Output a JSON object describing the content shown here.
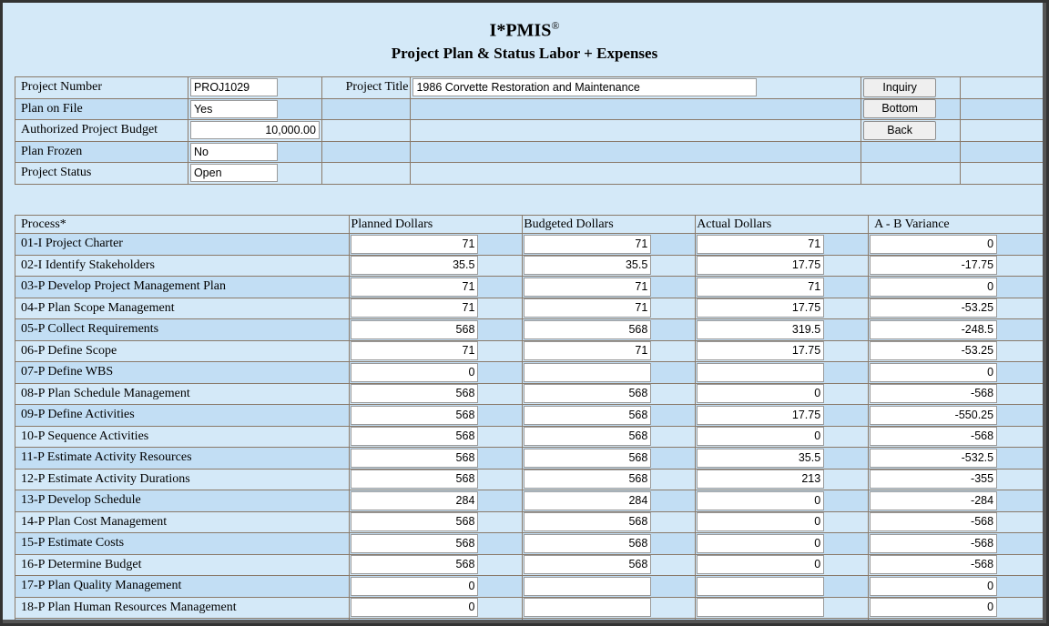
{
  "app": {
    "title": "I*PMIS",
    "reg_mark": "®",
    "subtitle": "Project Plan & Status Labor + Expenses"
  },
  "info": {
    "project_number_label": "Project Number",
    "project_number": "PROJ1029",
    "project_title_label": "Project Title",
    "project_title": "1986 Corvette Restoration and Maintenance",
    "plan_on_file_label": "Plan on File",
    "plan_on_file": "Yes",
    "budget_label": "Authorized Project Budget",
    "budget": "10,000.00",
    "plan_frozen_label": "Plan Frozen",
    "plan_frozen": "No",
    "status_label": "Project Status",
    "status": "Open"
  },
  "buttons": {
    "inquiry": "Inquiry",
    "bottom": "Bottom",
    "back": "Back"
  },
  "columns": [
    "Process*",
    "Planned Dollars",
    "Budgeted Dollars",
    "Actual Dollars",
    "A - B Variance"
  ],
  "rows": [
    {
      "name": "01-I Project Charter",
      "planned": "71",
      "budgeted": "71",
      "actual": "71",
      "variance": "0"
    },
    {
      "name": "02-I Identify Stakeholders",
      "planned": "35.5",
      "budgeted": "35.5",
      "actual": "17.75",
      "variance": "-17.75"
    },
    {
      "name": "03-P Develop Project Management Plan",
      "planned": "71",
      "budgeted": "71",
      "actual": "71",
      "variance": "0"
    },
    {
      "name": "04-P Plan Scope Management",
      "planned": "71",
      "budgeted": "71",
      "actual": "17.75",
      "variance": "-53.25"
    },
    {
      "name": "05-P Collect Requirements",
      "planned": "568",
      "budgeted": "568",
      "actual": "319.5",
      "variance": "-248.5"
    },
    {
      "name": "06-P Define Scope",
      "planned": "71",
      "budgeted": "71",
      "actual": "17.75",
      "variance": "-53.25"
    },
    {
      "name": "07-P Define WBS",
      "planned": "0",
      "budgeted": "",
      "actual": "",
      "variance": "0"
    },
    {
      "name": "08-P Plan Schedule Management",
      "planned": "568",
      "budgeted": "568",
      "actual": "0",
      "variance": "-568"
    },
    {
      "name": "09-P Define Activities",
      "planned": "568",
      "budgeted": "568",
      "actual": "17.75",
      "variance": "-550.25"
    },
    {
      "name": "10-P Sequence Activities",
      "planned": "568",
      "budgeted": "568",
      "actual": "0",
      "variance": "-568"
    },
    {
      "name": "11-P Estimate Activity Resources",
      "planned": "568",
      "budgeted": "568",
      "actual": "35.5",
      "variance": "-532.5"
    },
    {
      "name": "12-P Estimate Activity Durations",
      "planned": "568",
      "budgeted": "568",
      "actual": "213",
      "variance": "-355"
    },
    {
      "name": "13-P Develop Schedule",
      "planned": "284",
      "budgeted": "284",
      "actual": "0",
      "variance": "-284"
    },
    {
      "name": "14-P Plan Cost Management",
      "planned": "568",
      "budgeted": "568",
      "actual": "0",
      "variance": "-568"
    },
    {
      "name": "15-P Estimate Costs",
      "planned": "568",
      "budgeted": "568",
      "actual": "0",
      "variance": "-568"
    },
    {
      "name": "16-P Determine Budget",
      "planned": "568",
      "budgeted": "568",
      "actual": "0",
      "variance": "-568"
    },
    {
      "name": "17-P Plan Quality Management",
      "planned": "0",
      "budgeted": "",
      "actual": "",
      "variance": "0"
    },
    {
      "name": "18-P Plan Human Resources Management",
      "planned": "0",
      "budgeted": "",
      "actual": "",
      "variance": "0"
    },
    {
      "name": "",
      "planned": "",
      "budgeted": "",
      "actual": "",
      "variance": ""
    }
  ]
}
